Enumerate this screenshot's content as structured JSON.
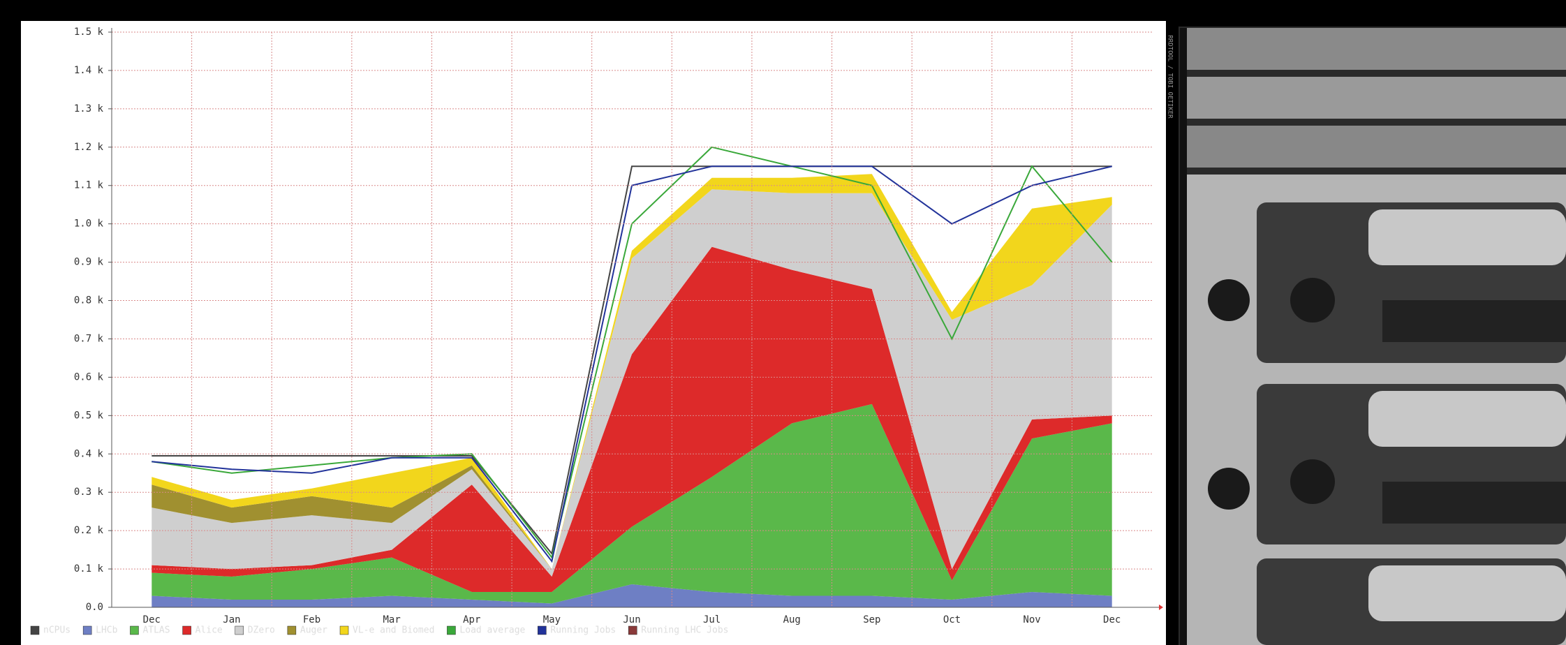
{
  "chart_data": {
    "type": "area",
    "stacked": true,
    "watermark": "RRDTOOL / TOBI OETIKER",
    "categories": [
      "Dec",
      "Jan",
      "Feb",
      "Mar",
      "Apr",
      "May",
      "Jun",
      "Jul",
      "Aug",
      "Sep",
      "Oct",
      "Nov",
      "Dec"
    ],
    "ylim": [
      0,
      1500
    ],
    "yticks": [
      {
        "value": 0,
        "label": "0.0"
      },
      {
        "value": 100,
        "label": "0.1 k"
      },
      {
        "value": 200,
        "label": "0.2 k"
      },
      {
        "value": 300,
        "label": "0.3 k"
      },
      {
        "value": 400,
        "label": "0.4 k"
      },
      {
        "value": 500,
        "label": "0.5 k"
      },
      {
        "value": 600,
        "label": "0.6 k"
      },
      {
        "value": 700,
        "label": "0.7 k"
      },
      {
        "value": 800,
        "label": "0.8 k"
      },
      {
        "value": 900,
        "label": "0.9 k"
      },
      {
        "value": 1000,
        "label": "1.0 k"
      },
      {
        "value": 1100,
        "label": "1.1 k"
      },
      {
        "value": 1200,
        "label": "1.2 k"
      },
      {
        "value": 1300,
        "label": "1.3 k"
      },
      {
        "value": 1400,
        "label": "1.4 k"
      },
      {
        "value": 1500,
        "label": "1.5 k"
      }
    ],
    "grid": true,
    "series": [
      {
        "name": "nCPUs",
        "color": "#444444",
        "style": "line",
        "values": [
          395,
          395,
          395,
          395,
          395,
          140,
          1150,
          1150,
          1150,
          1150,
          1150,
          1150,
          1150
        ]
      },
      {
        "name": "LHCb",
        "color": "#6e7fc4",
        "style": "stack",
        "values": [
          30,
          20,
          20,
          30,
          20,
          10,
          60,
          40,
          30,
          30,
          20,
          40,
          30
        ]
      },
      {
        "name": "ATLAS",
        "color": "#5ab84a",
        "style": "stack",
        "values": [
          60,
          60,
          80,
          100,
          20,
          30,
          150,
          300,
          450,
          500,
          50,
          400,
          450
        ]
      },
      {
        "name": "Alice",
        "color": "#dd2a2a",
        "style": "stack",
        "values": [
          20,
          20,
          10,
          20,
          280,
          40,
          450,
          600,
          400,
          300,
          30,
          50,
          20
        ]
      },
      {
        "name": "DZero",
        "color": "#cfcfcf",
        "style": "stack",
        "values": [
          150,
          120,
          130,
          70,
          40,
          20,
          250,
          150,
          200,
          250,
          650,
          350,
          550
        ]
      },
      {
        "name": "Auger",
        "color": "#a09030",
        "style": "stack",
        "values": [
          60,
          40,
          50,
          40,
          10,
          0,
          0,
          0,
          0,
          0,
          0,
          0,
          0
        ]
      },
      {
        "name": "VL-e and Biomed",
        "color": "#f2d61c",
        "style": "stack",
        "values": [
          20,
          20,
          20,
          90,
          20,
          0,
          20,
          30,
          40,
          50,
          20,
          200,
          20
        ]
      },
      {
        "name": "Load average",
        "color": "#3aa83a",
        "style": "line",
        "values": [
          380,
          350,
          370,
          390,
          400,
          130,
          1000,
          1200,
          1150,
          1100,
          700,
          1150,
          900
        ]
      },
      {
        "name": "Running Jobs",
        "color": "#22339a",
        "style": "line",
        "values": [
          380,
          360,
          350,
          390,
          390,
          120,
          1100,
          1150,
          1150,
          1150,
          1000,
          1100,
          1150
        ]
      },
      {
        "name": "Running LHC Jobs",
        "color": "#8a3a3a",
        "style": "line",
        "values": [
          null,
          null,
          null,
          null,
          null,
          null,
          null,
          null,
          null,
          null,
          null,
          null,
          null
        ]
      }
    ]
  }
}
